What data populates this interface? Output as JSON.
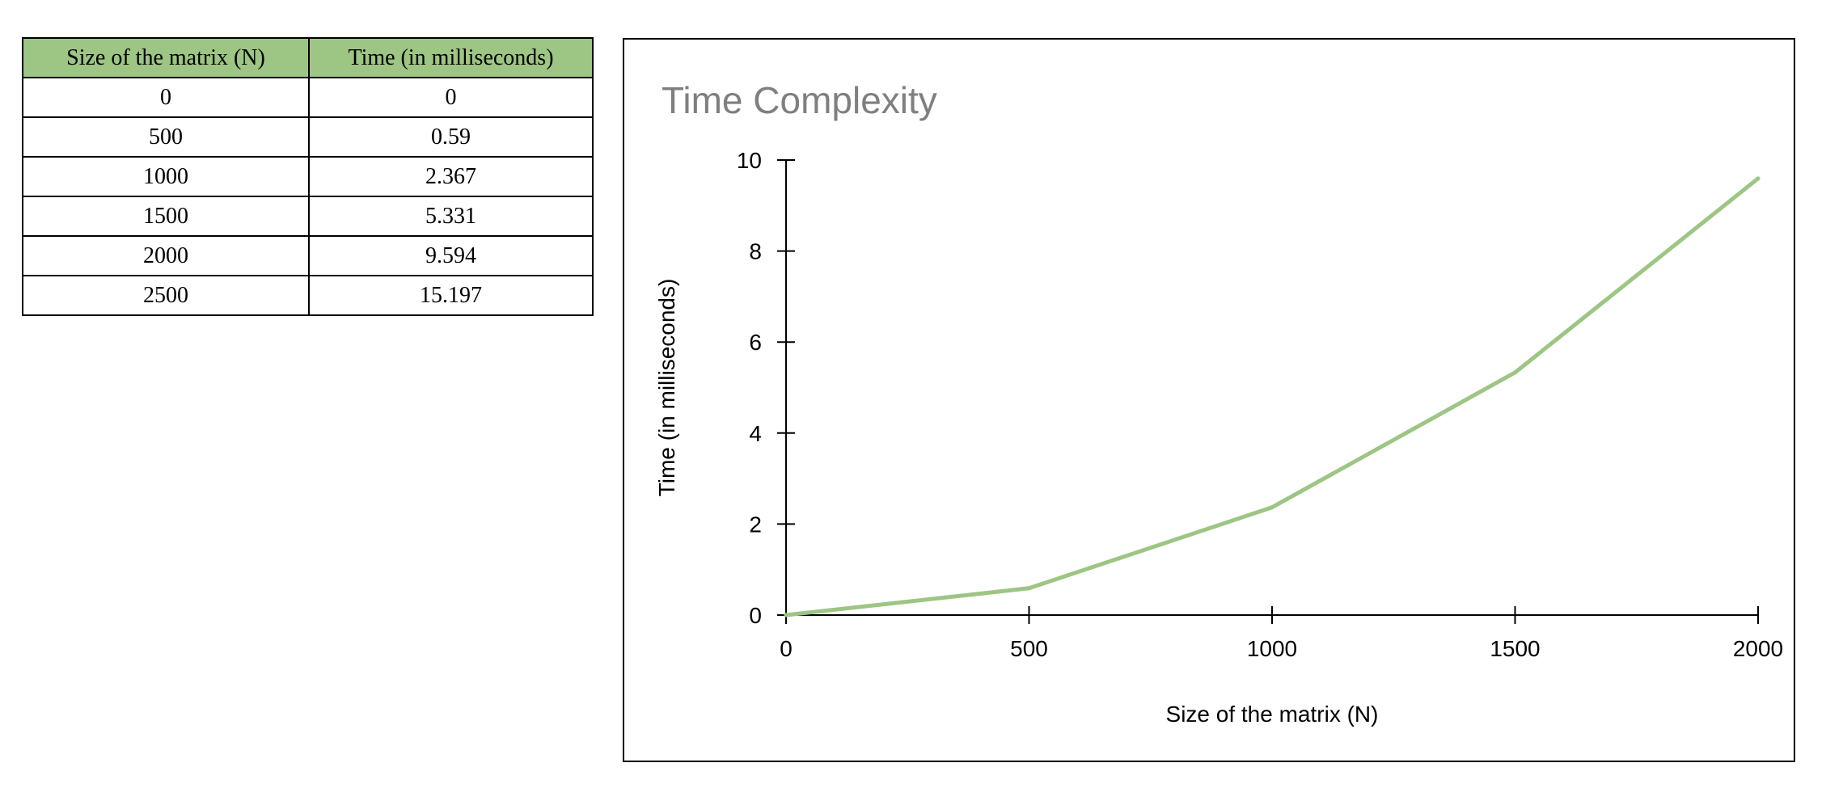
{
  "table": {
    "headers": [
      "Size of the matrix (N)",
      "Time (in milliseconds)"
    ],
    "rows": [
      [
        "0",
        "0"
      ],
      [
        "500",
        "0.59"
      ],
      [
        "1000",
        "2.367"
      ],
      [
        "1500",
        "5.331"
      ],
      [
        "2000",
        "9.594"
      ],
      [
        "2500",
        "15.197"
      ]
    ],
    "header_color": "#9dc583"
  },
  "chart_data": {
    "type": "line",
    "title": "Time Complexity",
    "xlabel": "Size of the matrix (N)",
    "ylabel": "Time (in milliseconds)",
    "x": [
      0,
      500,
      1000,
      1500,
      2000
    ],
    "series": [
      {
        "values": [
          0,
          0.59,
          2.367,
          5.331,
          9.594
        ],
        "color": "#9dc583"
      }
    ],
    "xlim": [
      0,
      2000
    ],
    "ylim": [
      0,
      10
    ],
    "x_ticks": [
      0,
      500,
      1000,
      1500,
      2000
    ],
    "y_ticks": [
      0,
      2,
      4,
      6,
      8,
      10
    ],
    "grid": false,
    "legend": "none"
  }
}
